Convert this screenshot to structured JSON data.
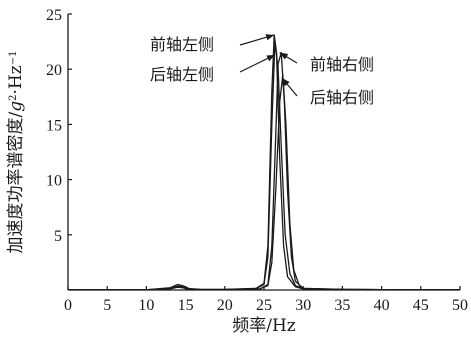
{
  "chart_data": {
    "type": "line",
    "xlabel": "频率/Hz",
    "ylabel": "加速度功率谱密度/g²·Hz⁻¹",
    "ylabel_parts": {
      "base": "加速度功率谱密度/",
      "g": "g",
      "sq": "2",
      "dot": "·Hz",
      "inv": "−1"
    },
    "xlim": [
      0,
      50
    ],
    "ylim": [
      0,
      25
    ],
    "xticks": [
      0,
      5,
      10,
      15,
      20,
      25,
      30,
      35,
      40,
      45,
      50
    ],
    "yticks": [
      5,
      10,
      15,
      20,
      25
    ],
    "grid": false,
    "series": [
      {
        "name": "前轴左侧",
        "x": [
          0,
          10,
          13,
          14,
          14.6,
          15.5,
          17,
          20,
          24,
          25,
          25.5,
          26,
          26.3,
          26.6,
          27,
          27.5,
          28,
          29,
          30,
          35,
          40,
          50
        ],
        "y": [
          0.02,
          0.02,
          0.2,
          0.5,
          0.4,
          0.12,
          0.05,
          0.05,
          0.15,
          0.6,
          4,
          18,
          23.1,
          21.5,
          12,
          4,
          1.2,
          0.3,
          0.1,
          0.05,
          0.03,
          0.02
        ]
      },
      {
        "name": "后轴左侧",
        "x": [
          0,
          10,
          13,
          14,
          14.6,
          15.5,
          17,
          20,
          24,
          25,
          25.5,
          26,
          26.4,
          26.8,
          27.2,
          27.7,
          28.3,
          29,
          30,
          35,
          40,
          50
        ],
        "y": [
          0.02,
          0.02,
          0.15,
          0.35,
          0.3,
          0.1,
          0.04,
          0.04,
          0.12,
          0.5,
          3,
          15,
          22.5,
          20,
          13,
          5,
          1.5,
          0.4,
          0.1,
          0.04,
          0.03,
          0.02
        ]
      },
      {
        "name": "前轴右侧",
        "x": [
          0,
          10,
          13,
          14,
          14.6,
          15.5,
          17,
          20,
          24.5,
          25.5,
          26,
          26.4,
          26.8,
          27.2,
          27.6,
          28,
          28.5,
          29,
          30,
          35,
          40,
          50
        ],
        "y": [
          0.02,
          0.02,
          0.1,
          0.3,
          0.25,
          0.08,
          0.03,
          0.03,
          0.1,
          0.5,
          4,
          12,
          20.5,
          21.5,
          17,
          9,
          3,
          0.8,
          0.15,
          0.05,
          0.03,
          0.02
        ]
      },
      {
        "name": "后轴右侧",
        "x": [
          0,
          10,
          13,
          14,
          14.6,
          15.5,
          17,
          20,
          24.5,
          25.5,
          26,
          26.5,
          27,
          27.4,
          27.8,
          28.3,
          28.8,
          29.5,
          30,
          35,
          40,
          50
        ],
        "y": [
          0.02,
          0.02,
          0.1,
          0.25,
          0.2,
          0.06,
          0.03,
          0.03,
          0.1,
          0.4,
          2.5,
          9,
          17,
          19.5,
          15,
          6,
          1.8,
          0.4,
          0.15,
          0.05,
          0.03,
          0.02
        ]
      }
    ],
    "annotations": [
      {
        "text": "前轴左侧",
        "series": 0,
        "peak_x": 26.3,
        "peak_y": 23.1,
        "side": "left"
      },
      {
        "text": "后轴左侧",
        "series": 1,
        "peak_x": 26.4,
        "peak_y": 21.3,
        "side": "left"
      },
      {
        "text": "前轴右侧",
        "series": 2,
        "peak_x": 27.0,
        "peak_y": 21.5,
        "side": "right"
      },
      {
        "text": "后轴右侧",
        "series": 3,
        "peak_x": 27.3,
        "peak_y": 19.2,
        "side": "right"
      }
    ]
  }
}
